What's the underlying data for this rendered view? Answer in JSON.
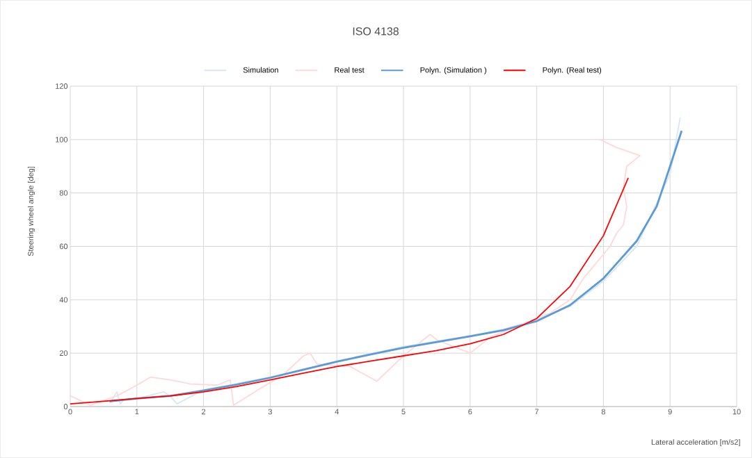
{
  "chart_data": {
    "type": "line",
    "title": "ISO 4138",
    "xlabel": "Lateral acceleration [m/s2]",
    "ylabel": "Steering wheel angle [deg]",
    "xlim": [
      0,
      10
    ],
    "xticks": [
      0,
      1,
      2,
      3,
      4,
      5,
      6,
      7,
      8,
      9,
      10
    ],
    "ylim": [
      0,
      120
    ],
    "yticks": [
      0,
      20,
      40,
      60,
      80,
      100,
      120
    ],
    "grid": true,
    "legend": "top",
    "series": [
      {
        "name": "Simulation",
        "color": "#dae6f3",
        "x": [
          0.6,
          0.7,
          0.75,
          0.8,
          1,
          1.4,
          1.5,
          1.6,
          2,
          3,
          4,
          5,
          6,
          6.5,
          7,
          7.5,
          8,
          8.5,
          9,
          9.15
        ],
        "values": [
          1.5,
          5.5,
          1,
          2.5,
          3,
          5.5,
          4,
          1,
          6.2,
          11,
          17,
          22.5,
          26.5,
          29,
          32.5,
          37.5,
          47,
          60,
          87,
          108
        ]
      },
      {
        "name": "Real test",
        "color": "#ffd9d9",
        "x": [
          0,
          0.3,
          0.7,
          1,
          1.2,
          1.5,
          1.8,
          2.2,
          2.4,
          2.45,
          2.8,
          3.2,
          3.5,
          3.6,
          3.7,
          4.2,
          4.6,
          5,
          5.4,
          5.5,
          5.8,
          6,
          6.3,
          6.8,
          7.2,
          7.5,
          7.7,
          7.9,
          8.1,
          8.2,
          8.3,
          8.35,
          8.3,
          8.35,
          8.55,
          8.2,
          7.95
        ],
        "values": [
          4,
          0.5,
          4,
          8,
          11,
          10,
          8.5,
          8,
          10,
          0.5,
          6,
          12,
          19,
          20,
          16,
          15,
          9.5,
          19,
          27,
          25,
          22,
          20,
          26,
          31,
          35,
          40,
          48,
          54,
          60,
          65,
          68,
          75,
          82,
          90,
          94,
          97,
          100
        ]
      },
      {
        "name": "Polyn. (Simulation )",
        "color": "#5b9bd5",
        "x": [
          0.6,
          1,
          1.5,
          2,
          2.5,
          3,
          3.5,
          4,
          4.5,
          5,
          5.5,
          6,
          6.5,
          7,
          7.5,
          8,
          8.5,
          8.8,
          9,
          9.17
        ],
        "values": [
          2,
          3,
          4,
          6,
          8.2,
          10.8,
          13.8,
          16.8,
          19.5,
          22,
          24.2,
          26.3,
          28.6,
          32,
          38,
          48,
          62,
          75,
          90,
          103
        ]
      },
      {
        "name": "Polyn. (Real test)",
        "color": "#ff0000",
        "x": [
          0,
          0.5,
          1,
          1.5,
          2,
          2.5,
          3,
          3.5,
          4,
          4.5,
          5,
          5.5,
          6,
          6.5,
          7,
          7.5,
          8,
          8.37
        ],
        "values": [
          1,
          2,
          3,
          4,
          5.5,
          7.5,
          10,
          12.5,
          15,
          17,
          19,
          21,
          23.5,
          27,
          33,
          45,
          64,
          85.5
        ]
      }
    ]
  }
}
